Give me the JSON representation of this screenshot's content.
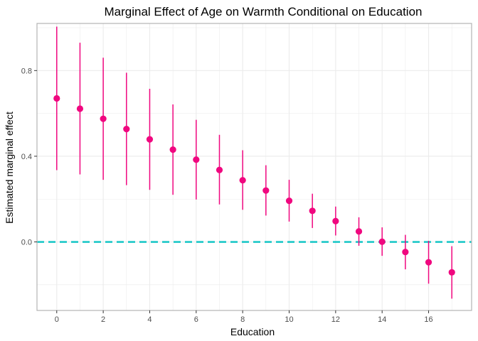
{
  "chart_data": {
    "type": "scatter",
    "title": "Marginal Effect of Age on Warmth Conditional on Education",
    "xlabel": "Education",
    "ylabel": "Estimated marginal effect",
    "x": [
      0,
      1,
      2,
      3,
      4,
      5,
      6,
      7,
      8,
      9,
      10,
      11,
      12,
      13,
      14,
      15,
      16,
      17
    ],
    "y": [
      0.67,
      0.622,
      0.575,
      0.527,
      0.479,
      0.431,
      0.384,
      0.336,
      0.288,
      0.24,
      0.192,
      0.145,
      0.097,
      0.049,
      0.001,
      -0.047,
      -0.095,
      -0.142
    ],
    "lower": [
      0.335,
      0.315,
      0.29,
      0.265,
      0.243,
      0.22,
      0.198,
      0.175,
      0.15,
      0.123,
      0.095,
      0.065,
      0.03,
      -0.018,
      -0.065,
      -0.128,
      -0.195,
      -0.265
    ],
    "upper": [
      1.005,
      0.93,
      0.86,
      0.79,
      0.715,
      0.642,
      0.57,
      0.5,
      0.428,
      0.358,
      0.29,
      0.225,
      0.165,
      0.115,
      0.068,
      0.033,
      0.005,
      -0.02
    ],
    "xticks": [
      0,
      2,
      4,
      6,
      8,
      10,
      12,
      14,
      16
    ],
    "yticks": [
      0.0,
      0.4,
      0.8
    ],
    "ytick_labels": [
      "0.0",
      "0.4",
      "0.8"
    ],
    "xlim": [
      -0.85,
      17.85
    ],
    "ylim": [
      -0.32,
      1.02
    ],
    "reference_line": 0,
    "grid": true,
    "colors": {
      "points": "#f0077f",
      "reference_line": "#1ec8c8",
      "grid": "#ebebeb",
      "panel_border": "#b3b3b3"
    }
  }
}
